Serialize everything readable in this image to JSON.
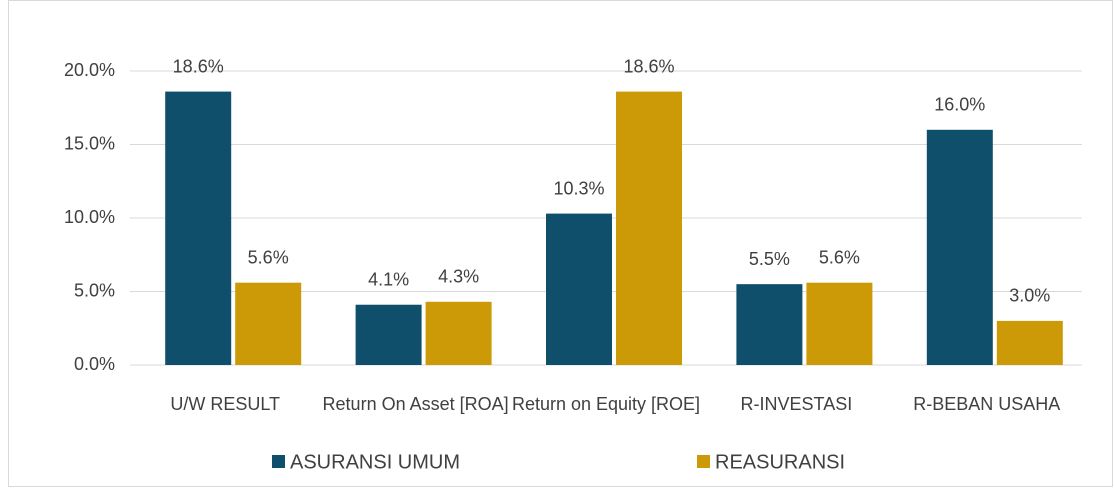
{
  "chart_data": {
    "type": "bar",
    "categories": [
      "U/W RESULT",
      "Return On Asset [ROA]",
      "Return on Equity [ROE]",
      "R-INVESTASI",
      "R-BEBAN USAHA"
    ],
    "series": [
      {
        "name": "ASURANSI UMUM",
        "color": "#0f4f6b",
        "values": [
          18.6,
          4.1,
          10.3,
          5.5,
          16.0
        ],
        "value_labels": [
          "18.6%",
          "4.1%",
          "10.3%",
          "5.5%",
          "16.0%"
        ]
      },
      {
        "name": "REASURANSI",
        "color": "#cc9a06",
        "values": [
          5.6,
          4.3,
          18.6,
          5.6,
          3.0
        ],
        "value_labels": [
          "5.6%",
          "4.3%",
          "18.6%",
          "5.6%",
          "3.0%"
        ]
      }
    ],
    "ylim": [
      0,
      20
    ],
    "yticks": [
      {
        "value": 0,
        "label": "0.0%"
      },
      {
        "value": 5,
        "label": "5.0%"
      },
      {
        "value": 10,
        "label": "10.0%"
      },
      {
        "value": 15,
        "label": "15.0%"
      },
      {
        "value": 20,
        "label": "20.0%"
      }
    ],
    "grid": true,
    "legend": "bottom"
  }
}
